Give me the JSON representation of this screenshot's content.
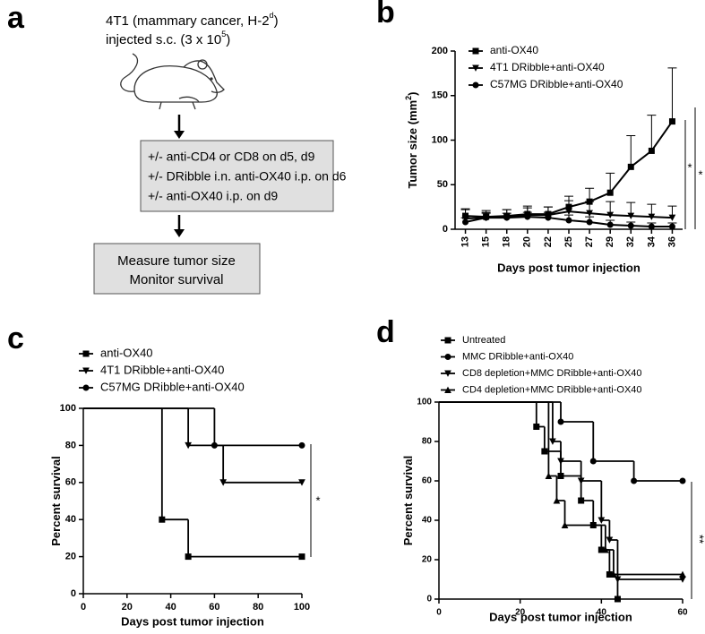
{
  "panel_a": {
    "panel_label": "a",
    "line1": "4T1 (mammary cancer, H-2",
    "line1_sup": "d",
    "line1_end": ")",
    "line2": "injected s.c. (3 x 10",
    "line2_sup": "5",
    "line2_end": ")",
    "box1": [
      "+/- anti-CD4 or CD8 on d5, d9",
      "+/- DRibble i.n. anti-OX40 i.p. on d6",
      "+/- anti-OX40 i.p. on d9"
    ],
    "box2": [
      "Measure tumor size",
      "Monitor survival"
    ]
  },
  "chart_data": [
    {
      "type": "line",
      "panel_label": "b",
      "xlabel": "Days post tumor injection",
      "ylabel": "Tumor size (mm",
      "ylabel_sup": "2",
      "ylabel_end": ")",
      "categories": [
        "13",
        "15",
        "18",
        "20",
        "22",
        "25",
        "27",
        "29",
        "32",
        "34",
        "36"
      ],
      "ylim": [
        0,
        200
      ],
      "yticks": [
        0,
        50,
        100,
        150,
        200
      ],
      "series": [
        {
          "name": "anti-OX40",
          "color": "#000000",
          "marker": "square",
          "values": [
            15,
            14,
            15,
            17,
            17,
            25,
            31,
            41,
            70,
            88,
            121
          ],
          "errors": [
            8,
            5,
            7,
            9,
            8,
            12,
            15,
            22,
            35,
            40,
            60
          ]
        },
        {
          "name": "4T1 DRibble+anti-OX40",
          "color": "#000000",
          "marker": "triangle-down",
          "values": [
            12,
            13,
            14,
            16,
            16,
            20,
            18,
            16,
            15,
            14,
            13
          ],
          "errors": [
            10,
            8,
            8,
            8,
            9,
            12,
            13,
            15,
            15,
            14,
            13
          ]
        },
        {
          "name": "C57MG DRibble+anti-OX40",
          "color": "#000000",
          "marker": "circle",
          "values": [
            8,
            13,
            13,
            14,
            13,
            10,
            8,
            5,
            4,
            3,
            3
          ],
          "errors": [
            5,
            5,
            5,
            5,
            6,
            6,
            6,
            5,
            4,
            4,
            4
          ]
        }
      ],
      "annotations": [
        "*",
        "*"
      ]
    },
    {
      "type": "step",
      "panel_label": "c",
      "xlabel": "Days post tumor injection",
      "ylabel": "Percent survival",
      "xlim": [
        0,
        100
      ],
      "xticks": [
        0,
        20,
        40,
        60,
        80,
        100
      ],
      "ylim": [
        0,
        100
      ],
      "yticks": [
        0,
        20,
        40,
        60,
        80,
        100
      ],
      "series": [
        {
          "name": "anti-OX40",
          "color": "#000000",
          "marker": "square",
          "x": [
            0,
            36,
            48,
            100
          ],
          "values": [
            100,
            40,
            20,
            20
          ]
        },
        {
          "name": "4T1 DRibble+anti-OX40",
          "color": "#000000",
          "marker": "triangle-down",
          "x": [
            0,
            48,
            64,
            100
          ],
          "values": [
            100,
            80,
            60,
            60
          ]
        },
        {
          "name": "C57MG DRibble+anti-OX40",
          "color": "#000000",
          "marker": "circle",
          "x": [
            0,
            60,
            100
          ],
          "values": [
            100,
            80,
            80
          ]
        }
      ],
      "annotations": [
        "*"
      ]
    },
    {
      "type": "step",
      "panel_label": "d",
      "xlabel": "Days post tumor injection",
      "ylabel": "Percent survival",
      "xlim": [
        0,
        60
      ],
      "xticks": [
        0,
        20,
        40,
        60
      ],
      "ylim": [
        0,
        100
      ],
      "yticks": [
        0,
        20,
        40,
        60,
        80,
        100
      ],
      "series": [
        {
          "name": "Untreated",
          "color": "#000000",
          "marker": "square",
          "x": [
            0,
            24,
            26,
            30,
            35,
            38,
            40,
            42,
            44
          ],
          "values": [
            100,
            87.5,
            75,
            62.5,
            50,
            37.5,
            25,
            12.5,
            0
          ]
        },
        {
          "name": "MMC DRibble+anti-OX40",
          "color": "#000000",
          "marker": "circle",
          "x": [
            0,
            30,
            38,
            48,
            60
          ],
          "values": [
            100,
            90,
            70,
            60,
            60
          ]
        },
        {
          "name": "CD8 depletion+MMC DRibble+anti-OX40",
          "color": "#000000",
          "marker": "triangle-down",
          "x": [
            0,
            28,
            30,
            35,
            40,
            42,
            44,
            60
          ],
          "values": [
            100,
            80,
            70,
            60,
            40,
            30,
            10,
            10
          ]
        },
        {
          "name": "CD4 depletion+MMC DRibble+anti-OX40",
          "color": "#000000",
          "marker": "triangle-up",
          "x": [
            0,
            27,
            29,
            31,
            41,
            43,
            60
          ],
          "values": [
            100,
            62.5,
            50,
            37.5,
            25,
            12.5,
            12.5
          ]
        }
      ],
      "annotations": [
        "**"
      ]
    }
  ]
}
